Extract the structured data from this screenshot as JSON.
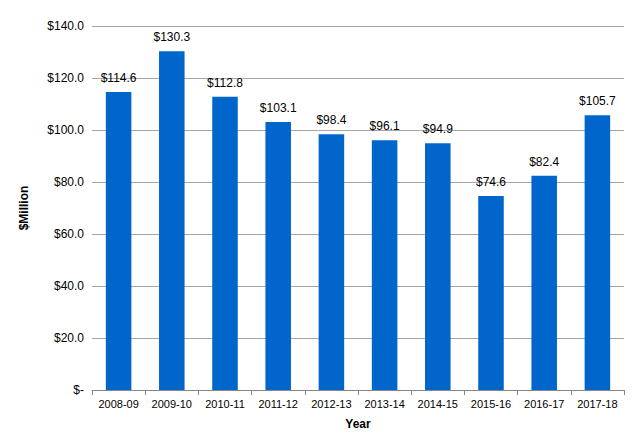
{
  "chart_data": {
    "type": "bar",
    "x_label": "Year",
    "y_label": "$Million",
    "categories": [
      "2008-09",
      "2009-10",
      "2010-11",
      "2011-12",
      "2012-13",
      "2013-14",
      "2014-15",
      "2015-16",
      "2016-17",
      "2017-18"
    ],
    "values": [
      114.6,
      130.3,
      112.8,
      103.1,
      98.4,
      96.1,
      94.9,
      74.6,
      82.4,
      105.7
    ],
    "value_labels": [
      "$114.6",
      "$130.3",
      "$112.8",
      "$103.1",
      "$98.4",
      "$96.1",
      "$94.9",
      "$74.6",
      "$82.4",
      "$105.7"
    ],
    "color": "#0066cc",
    "ylim": [
      0,
      140
    ],
    "yticks": [
      {
        "value": 0,
        "label": "$-"
      },
      {
        "value": 20,
        "label": "$20.0"
      },
      {
        "value": 40,
        "label": "$40.0"
      },
      {
        "value": 60,
        "label": "$60.0"
      },
      {
        "value": 80,
        "label": "$80.0"
      },
      {
        "value": 100,
        "label": "$100.0"
      },
      {
        "value": 120,
        "label": "$120.0"
      },
      {
        "value": 140,
        "label": "$140.0"
      }
    ],
    "grid": true,
    "data_labels": true
  }
}
